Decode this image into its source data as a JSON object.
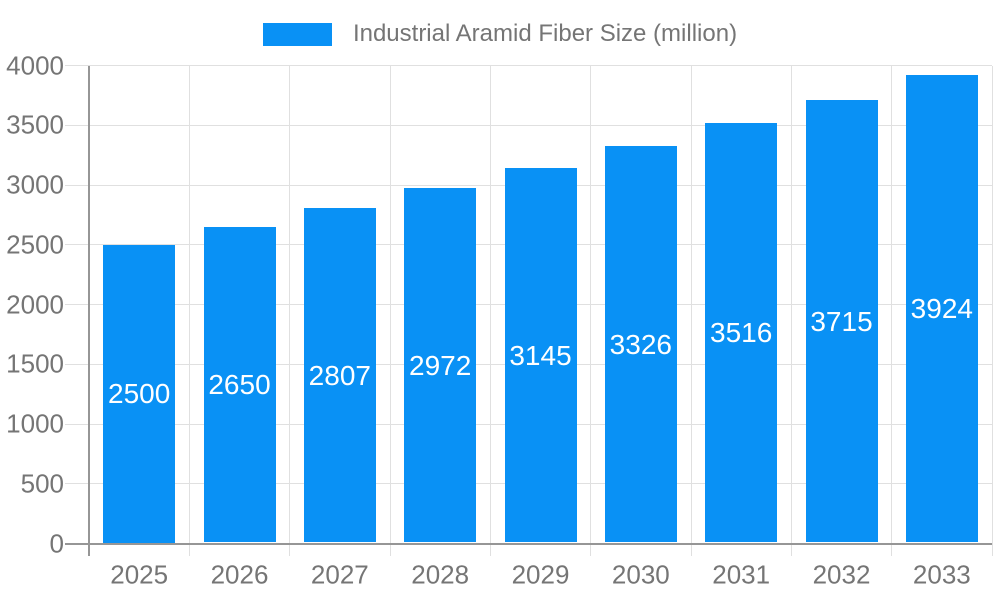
{
  "chart_data": {
    "type": "bar",
    "title": "Industrial Aramid Fiber Size (million)",
    "legend": {
      "position": "top",
      "label": "Industrial Aramid Fiber Size (million)"
    },
    "categories": [
      "2025",
      "2026",
      "2027",
      "2028",
      "2029",
      "2030",
      "2031",
      "2032",
      "2033"
    ],
    "values": [
      2500,
      2650,
      2807,
      2972,
      3145,
      3326,
      3516,
      3715,
      3924
    ],
    "xlabel": "",
    "ylabel": "",
    "ylim": [
      0,
      4000
    ],
    "y_ticks": [
      0,
      500,
      1000,
      1500,
      2000,
      2500,
      3000,
      3500,
      4000
    ],
    "grid": true,
    "value_labels": "centered-inside-bars",
    "colors": {
      "bar": "#0991f5",
      "gridline": "#e0e0e0",
      "axis_line": "#969696",
      "axis_label": "#757575",
      "legend_label": "#757575",
      "value_label": "#ffffff",
      "background": "#ffffff"
    }
  }
}
